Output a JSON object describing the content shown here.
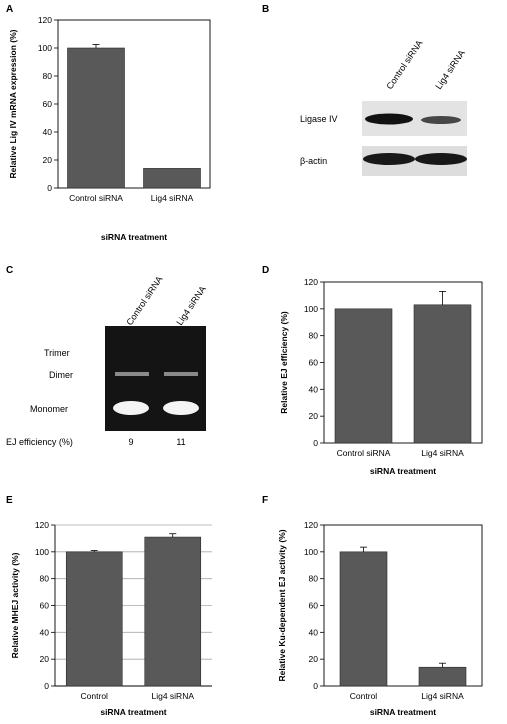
{
  "chart_data": [
    {
      "panel": "A",
      "type": "bar",
      "categories": [
        "Control siRNA",
        "Lig4 siRNA"
      ],
      "values": [
        100,
        14
      ],
      "errors": [
        2.5,
        0
      ],
      "xlabel": "siRNA treatment",
      "ylabel": "Relative Lig IV mRNA expression (%)",
      "ylim": [
        0,
        120
      ],
      "yticks": [
        0,
        20,
        40,
        60,
        80,
        100,
        120
      ],
      "grid": false
    },
    {
      "panel": "D",
      "type": "bar",
      "categories": [
        "Control siRNA",
        "Lig4 siRNA"
      ],
      "values": [
        100,
        103
      ],
      "errors": [
        0,
        10
      ],
      "xlabel": "siRNA treatment",
      "ylabel": "Relative EJ efficiency (%)",
      "ylim": [
        0,
        120
      ],
      "yticks": [
        0,
        20,
        40,
        60,
        80,
        100,
        120
      ],
      "grid": false
    },
    {
      "panel": "E",
      "type": "bar",
      "categories": [
        "Control",
        "Lig4 siRNA"
      ],
      "values": [
        100,
        111
      ],
      "errors": [
        1,
        2.5
      ],
      "xlabel": "siRNA treatment",
      "ylabel": "Relative MHEJ activity (%)",
      "ylim": [
        0,
        120
      ],
      "yticks": [
        0,
        20,
        40,
        60,
        80,
        100,
        120
      ],
      "grid": true
    },
    {
      "panel": "F",
      "type": "bar",
      "categories": [
        "Control",
        "Lig4 siRNA"
      ],
      "values": [
        100,
        14
      ],
      "errors": [
        3.5,
        3
      ],
      "xlabel": "siRNA treatment",
      "ylabel": "Relative Ku-dependent EJ activity (%)",
      "ylim": [
        0,
        120
      ],
      "yticks": [
        0,
        20,
        40,
        60,
        80,
        100,
        120
      ],
      "grid": false
    }
  ],
  "colors": {
    "bar": "#595959",
    "gel_bg": "#141414",
    "gel_band": "#f4f4f4"
  },
  "panelB": {
    "letter": "B",
    "lanes": [
      "Control siRNA",
      "Lig4 siRNA"
    ],
    "rows": [
      "Ligase IV",
      "β-actin"
    ]
  },
  "panelC": {
    "letter": "C",
    "lanes": [
      "Control siRNA",
      "Lig4 siRNA"
    ],
    "bands": [
      "Trimer",
      "Dimer",
      "Monomer"
    ],
    "ej_label": "EJ efficiency (%)",
    "ej_values": [
      "9",
      "11"
    ]
  }
}
